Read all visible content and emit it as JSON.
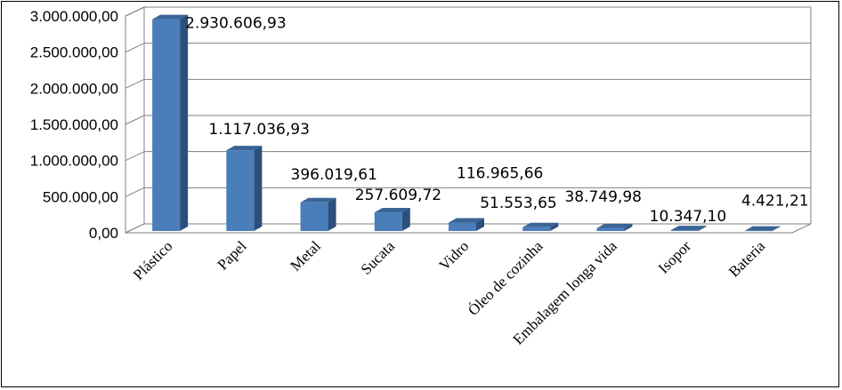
{
  "chart_data": {
    "type": "bar",
    "categories": [
      "Plástico",
      "Papel",
      "Metal",
      "Sucata",
      "Vidro",
      "Óleo de cozinha",
      "Embalagem longa vida",
      "Isopor",
      "Bateria"
    ],
    "values": [
      2930606.93,
      1117036.93,
      396019.61,
      257609.72,
      116965.66,
      51553.65,
      38749.98,
      10347.1,
      4421.21
    ],
    "data_labels": [
      "2.930.606,93",
      "1.117.036,93",
      "396.019,61",
      "257.609,72",
      "116.965,66",
      "51.553,65",
      "38.749,98",
      "10.347,10",
      "4.421,21"
    ],
    "y_ticks": [
      0,
      500000,
      1000000,
      1500000,
      2000000,
      2500000,
      3000000
    ],
    "y_tick_labels": [
      "0,00",
      "500.000,00",
      "1.000.000,00",
      "1.500.000,00",
      "2.000.000,00",
      "2.500.000,00",
      "3.000.000,00"
    ],
    "ylim": [
      0,
      3000000
    ],
    "title": "",
    "xlabel": "",
    "ylabel": "",
    "grid": true,
    "style": "3d-column",
    "colors": {
      "bar_front": "#4a7ebb",
      "bar_side": "#2c4f7c",
      "bar_top": "#3a6496",
      "grid": "#808080",
      "floor": "#ffffff"
    }
  }
}
